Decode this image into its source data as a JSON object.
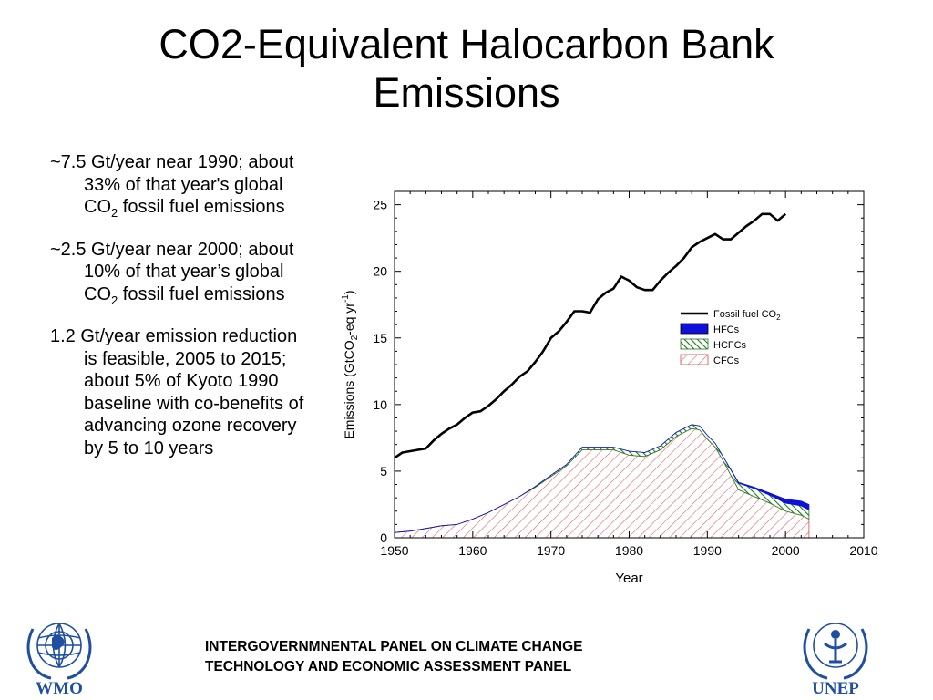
{
  "slide": {
    "title_line1": "CO2-Equivalent Halocarbon Bank",
    "title_line2": "Emissions"
  },
  "bullets": [
    {
      "pre": "~7.5 Gt/year near 1990; about 33% of that year's global CO",
      "sub": "2",
      "post": " fossil fuel emissions"
    },
    {
      "pre": "~2.5 Gt/year near 2000; about 10% of that year’s global CO",
      "sub": "2",
      "post": " fossil fuel emissions"
    },
    {
      "pre": "1.2 Gt/year emission reduction is feasible, 2005 to 2015; about 5% of Kyoto 1990 baseline with co-benefits of advancing ozone recovery by 5 to 10 years",
      "sub": "",
      "post": ""
    }
  ],
  "footer": {
    "line1": "INTERGOVERNMNENTAL PANEL ON CLIMATE CHANGE",
    "line2": "TECHNOLOGY AND ECONOMIC ASSESSMENT PANEL"
  },
  "logos": {
    "left_label": "WMO",
    "right_label": "UNEP",
    "color": "#1f4fa0"
  },
  "chart_data": {
    "type": "line",
    "xlabel": "Year",
    "ylabel": {
      "pre": "Emissions (GtCO",
      "sub1": "2",
      "mid": "-eq yr",
      "sup": "-1",
      "post": ")"
    },
    "xlim": [
      1950,
      2010
    ],
    "ylim": [
      0,
      26
    ],
    "xticks": [
      1950,
      1960,
      1970,
      1980,
      1990,
      2000,
      2010
    ],
    "yticks": [
      0,
      5,
      10,
      15,
      20,
      25
    ],
    "grid": false,
    "legend_position": "right",
    "line_series": {
      "name_pre": "Fossil fuel CO",
      "name_sub": "2",
      "color": "#000000",
      "x": [
        1950,
        1951,
        1952,
        1953,
        1954,
        1955,
        1956,
        1957,
        1958,
        1959,
        1960,
        1961,
        1962,
        1963,
        1964,
        1965,
        1966,
        1967,
        1968,
        1969,
        1970,
        1971,
        1972,
        1973,
        1974,
        1975,
        1976,
        1977,
        1978,
        1979,
        1980,
        1981,
        1982,
        1983,
        1984,
        1985,
        1986,
        1987,
        1988,
        1989,
        1990,
        1991,
        1992,
        1993,
        1994,
        1995,
        1996,
        1997,
        1998,
        1999,
        2000
      ],
      "y": [
        6.0,
        6.4,
        6.5,
        6.6,
        6.7,
        7.3,
        7.8,
        8.2,
        8.5,
        9.0,
        9.4,
        9.5,
        9.9,
        10.4,
        11.0,
        11.5,
        12.1,
        12.5,
        13.2,
        14.0,
        15.0,
        15.5,
        16.2,
        17.0,
        17.0,
        16.9,
        17.9,
        18.4,
        18.7,
        19.6,
        19.3,
        18.8,
        18.6,
        18.6,
        19.3,
        19.9,
        20.4,
        21.0,
        21.8,
        22.2,
        22.5,
        22.8,
        22.4,
        22.4,
        22.9,
        23.4,
        23.8,
        24.3,
        24.3,
        23.8,
        24.3
      ]
    },
    "area_series": [
      {
        "name": "CFCs",
        "fill": "hatch-red"
      },
      {
        "name": "HCFCs",
        "fill": "hatch-green"
      },
      {
        "name": "HFCs",
        "fill": "#1010dd"
      }
    ],
    "area_x": [
      1950,
      1952,
      1954,
      1956,
      1958,
      1960,
      1962,
      1964,
      1966,
      1968,
      1970,
      1972,
      1974,
      1976,
      1978,
      1980,
      1982,
      1984,
      1986,
      1988,
      1989,
      1990,
      1991,
      1992,
      1994,
      1996,
      1998,
      2000,
      2002,
      2003
    ],
    "cfc": [
      0.4,
      0.5,
      0.7,
      0.9,
      1.0,
      1.4,
      1.9,
      2.5,
      3.1,
      3.8,
      4.6,
      5.4,
      6.6,
      6.6,
      6.6,
      6.2,
      6.1,
      6.6,
      7.6,
      8.2,
      8.1,
      7.4,
      6.8,
      5.8,
      3.6,
      3.1,
      2.6,
      2.0,
      1.7,
      1.4
    ],
    "hcfc": [
      0.0,
      0.0,
      0.0,
      0.0,
      0.0,
      0.0,
      0.0,
      0.0,
      0.0,
      0.05,
      0.1,
      0.1,
      0.2,
      0.2,
      0.2,
      0.3,
      0.3,
      0.3,
      0.3,
      0.3,
      0.3,
      0.3,
      0.3,
      0.3,
      0.5,
      0.6,
      0.6,
      0.6,
      0.7,
      0.7
    ],
    "hfc": [
      0.0,
      0.0,
      0.0,
      0.0,
      0.0,
      0.0,
      0.0,
      0.0,
      0.0,
      0.0,
      0.0,
      0.0,
      0.0,
      0.0,
      0.0,
      0.0,
      0.0,
      0.0,
      0.0,
      0.0,
      0.0,
      0.0,
      0.0,
      0.0,
      0.05,
      0.1,
      0.15,
      0.3,
      0.35,
      0.4
    ]
  }
}
